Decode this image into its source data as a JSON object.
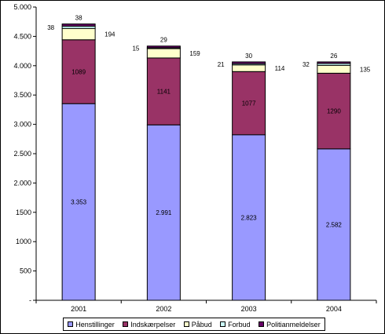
{
  "chart_data": {
    "type": "bar",
    "stacked": true,
    "categories": [
      "2001",
      "2002",
      "2003",
      "2004"
    ],
    "ylim": [
      0,
      5000
    ],
    "yticks": [
      {
        "value": 0,
        "label": "-"
      },
      {
        "value": 500,
        "label": "500"
      },
      {
        "value": 1000,
        "label": "1000"
      },
      {
        "value": 1500,
        "label": "1500"
      },
      {
        "value": 2000,
        "label": "2.000"
      },
      {
        "value": 2500,
        "label": "2.500"
      },
      {
        "value": 3000,
        "label": "3.000"
      },
      {
        "value": 3500,
        "label": "3.500"
      },
      {
        "value": 4000,
        "label": "4.000"
      },
      {
        "value": 4500,
        "label": "4.500"
      },
      {
        "value": 5000,
        "label": "5.000"
      }
    ],
    "series": [
      {
        "name": "Henstillinger",
        "color": "#9999ff",
        "values": [
          3353,
          2991,
          2823,
          2582
        ],
        "labels": [
          "3.353",
          "2.991",
          "2.823",
          "2.582"
        ],
        "label_pos": "inside"
      },
      {
        "name": "Indskærpelser",
        "color": "#993366",
        "values": [
          1089,
          1141,
          1077,
          1290
        ],
        "labels": [
          "1089",
          "1141",
          "1077",
          "1290"
        ],
        "label_pos": "inside"
      },
      {
        "name": "Påbud",
        "color": "#ffffcc",
        "values": [
          194,
          159,
          114,
          135
        ],
        "labels": [
          "194",
          "159",
          "114",
          "135"
        ],
        "label_pos": "right"
      },
      {
        "name": "Forbud",
        "color": "#ccffff",
        "values": [
          38,
          15,
          21,
          32
        ],
        "labels": [
          "38",
          "15",
          "21",
          "32"
        ],
        "label_pos": "left"
      },
      {
        "name": "Politianmeldelser",
        "color": "#660066",
        "values": [
          38,
          29,
          30,
          26
        ],
        "labels": [
          "38",
          "29",
          "30",
          "26"
        ],
        "label_pos": "top"
      }
    ],
    "grid": false,
    "legend": "bottom"
  },
  "legend": {
    "items": [
      {
        "name": "Henstillinger",
        "color": "#9999ff"
      },
      {
        "name": "Indskærpelser",
        "color": "#993366"
      },
      {
        "name": "Påbud",
        "color": "#ffffcc"
      },
      {
        "name": "Forbud",
        "color": "#ccffff"
      },
      {
        "name": "Politianmeldelser",
        "color": "#660066"
      }
    ]
  }
}
